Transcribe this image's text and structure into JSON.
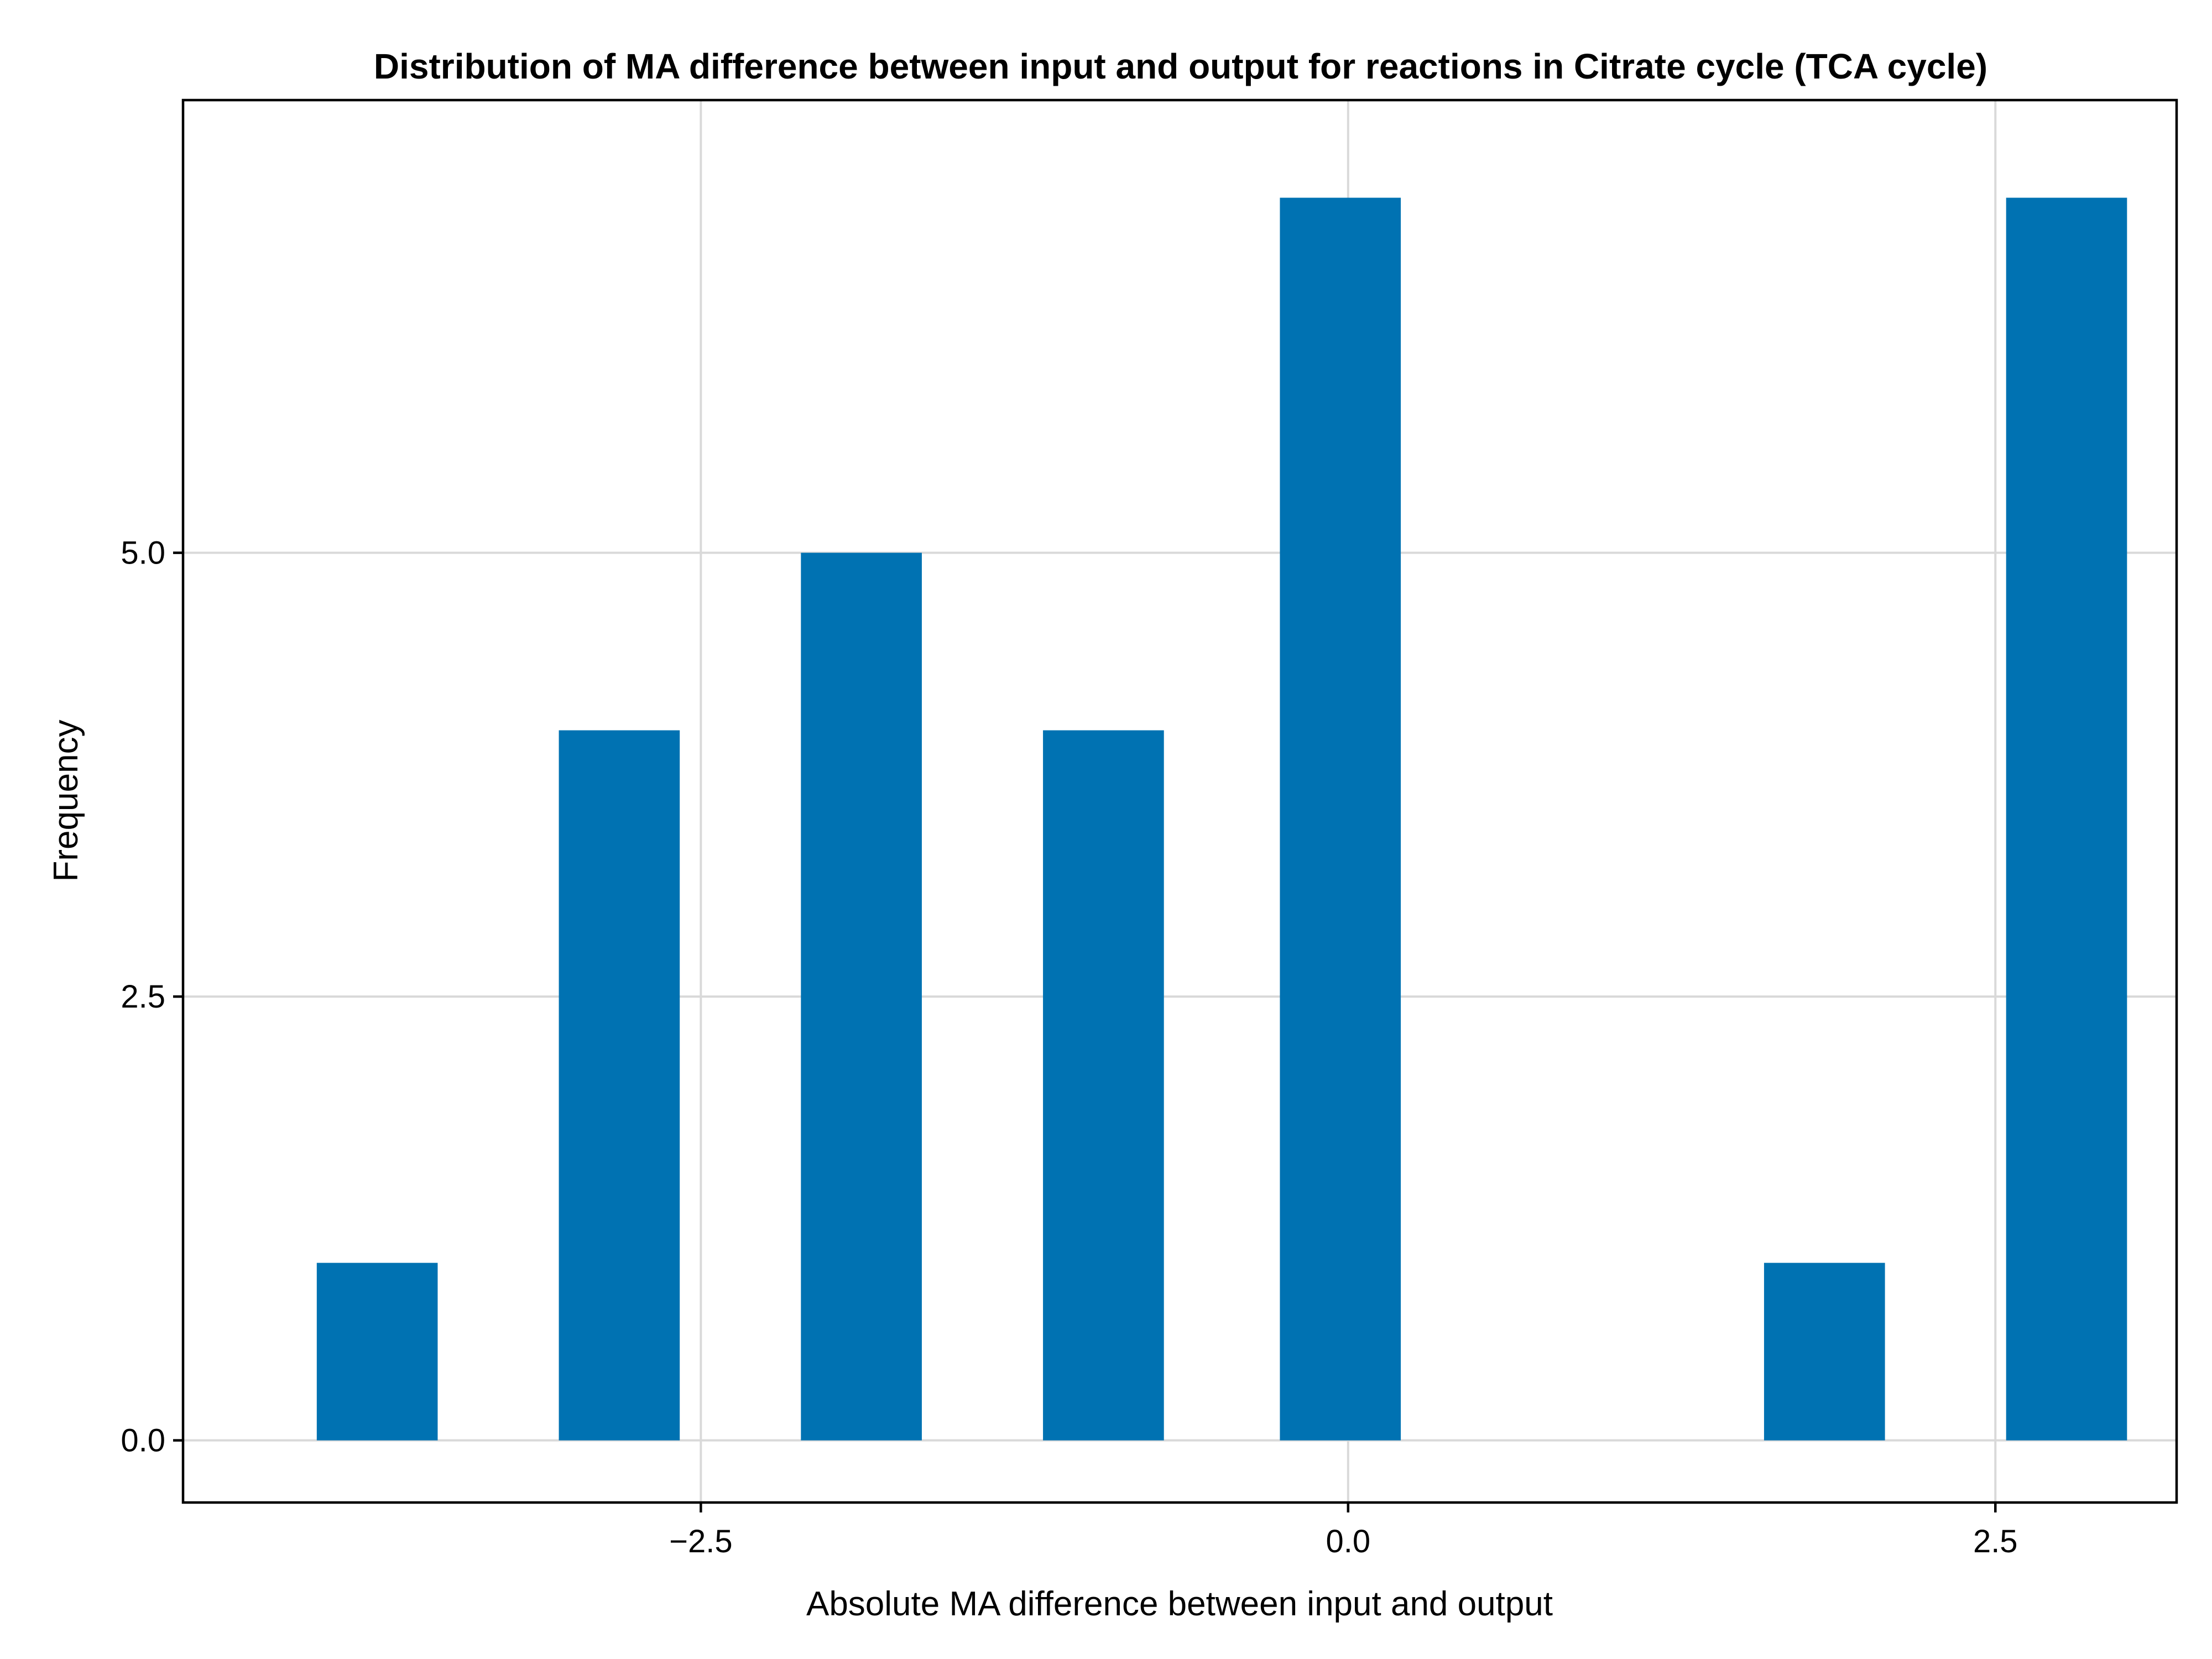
{
  "chart_data": {
    "type": "bar",
    "title": "Distribution of MA difference between input and output for reactions in Citrate cycle (TCA cycle)",
    "xlabel": "Absolute MA difference between input and output",
    "ylabel": "Frequency",
    "bins": [
      {
        "center": -3.75,
        "width": 0.467,
        "count": 1
      },
      {
        "center": -2.815,
        "width": 0.467,
        "count": 4
      },
      {
        "center": -1.88,
        "width": 0.467,
        "count": 5
      },
      {
        "center": -0.945,
        "width": 0.467,
        "count": 4
      },
      {
        "center": -0.03,
        "width": 0.467,
        "count": 7
      },
      {
        "center": 1.84,
        "width": 0.467,
        "count": 1
      },
      {
        "center": 2.775,
        "width": 0.467,
        "count": 7
      }
    ],
    "xlim": [
      -4.5,
      3.2
    ],
    "ylim": [
      -0.35,
      7.55
    ],
    "x_ticks": [
      {
        "value": -2.5,
        "label": "−2.5"
      },
      {
        "value": 0.0,
        "label": "0.0"
      },
      {
        "value": 2.5,
        "label": "2.5"
      }
    ],
    "y_ticks": [
      {
        "value": 0.0,
        "label": "0.0"
      },
      {
        "value": 2.5,
        "label": "2.5"
      },
      {
        "value": 5.0,
        "label": "5.0"
      }
    ],
    "grid": true,
    "bar_color": "#0072b2"
  }
}
